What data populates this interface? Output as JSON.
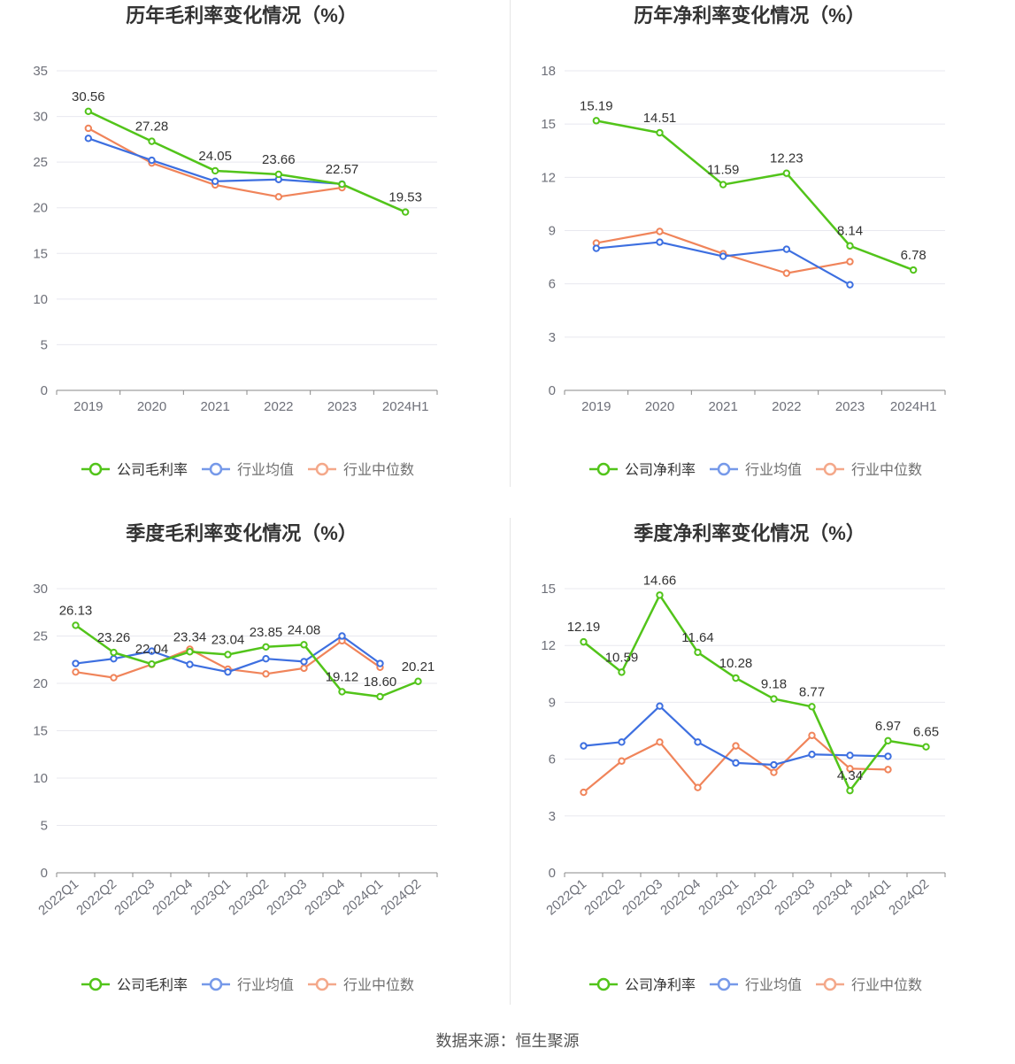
{
  "colors": {
    "company": "#52c41a",
    "avg": "#3d6fe0",
    "median": "#f0845a",
    "grid": "#e8e8ef",
    "axis": "#888888"
  },
  "legend": {
    "avg": "行业均值",
    "median": "行业中位数"
  },
  "source": "数据来源：恒生聚源",
  "chart_data": [
    {
      "type": "line",
      "title": "历年毛利率变化情况（%）",
      "company_label": "公司毛利率",
      "categories": [
        "2019",
        "2020",
        "2021",
        "2022",
        "2023",
        "2024H1"
      ],
      "ylim": [
        0,
        35
      ],
      "yticks": [
        0,
        5,
        10,
        15,
        20,
        25,
        30,
        35
      ],
      "rotate_x": false,
      "series": [
        {
          "key": "company",
          "values": [
            30.56,
            27.28,
            24.05,
            23.66,
            22.57,
            19.53
          ],
          "labels": [
            "30.56",
            "27.28",
            "24.05",
            "23.66",
            "22.57",
            "19.53"
          ]
        },
        {
          "key": "avg",
          "values": [
            27.6,
            25.2,
            22.9,
            23.1,
            22.6,
            null
          ]
        },
        {
          "key": "median",
          "values": [
            28.7,
            24.9,
            22.5,
            21.2,
            22.2,
            null
          ]
        }
      ]
    },
    {
      "type": "line",
      "title": "历年净利率变化情况（%）",
      "company_label": "公司净利率",
      "categories": [
        "2019",
        "2020",
        "2021",
        "2022",
        "2023",
        "2024H1"
      ],
      "ylim": [
        0,
        18
      ],
      "yticks": [
        0,
        3,
        6,
        9,
        12,
        15,
        18
      ],
      "rotate_x": false,
      "series": [
        {
          "key": "company",
          "values": [
            15.19,
            14.51,
            11.59,
            12.23,
            8.14,
            6.78
          ],
          "labels": [
            "15.19",
            "14.51",
            "11.59",
            "12.23",
            "8.14",
            "6.78"
          ]
        },
        {
          "key": "avg",
          "values": [
            8.0,
            8.35,
            7.55,
            7.95,
            5.95,
            null
          ]
        },
        {
          "key": "median",
          "values": [
            8.3,
            8.95,
            7.7,
            6.6,
            7.25,
            null
          ]
        }
      ]
    },
    {
      "type": "line",
      "title": "季度毛利率变化情况（%）",
      "company_label": "公司毛利率",
      "categories": [
        "2022Q1",
        "2022Q2",
        "2022Q3",
        "2022Q4",
        "2023Q1",
        "2023Q2",
        "2023Q3",
        "2023Q4",
        "2024Q1",
        "2024Q2"
      ],
      "ylim": [
        0,
        30
      ],
      "yticks": [
        0,
        5,
        10,
        15,
        20,
        25,
        30
      ],
      "rotate_x": true,
      "series": [
        {
          "key": "company",
          "values": [
            26.13,
            23.26,
            22.04,
            23.34,
            23.04,
            23.85,
            24.08,
            19.12,
            18.6,
            20.21
          ],
          "labels": [
            "26.13",
            "23.26",
            "22.04",
            "23.34",
            "23.04",
            "23.85",
            "24.08",
            "19.12",
            "18.60",
            "20.21"
          ]
        },
        {
          "key": "avg",
          "values": [
            22.1,
            22.6,
            23.4,
            22.0,
            21.2,
            22.6,
            22.3,
            25.0,
            22.1,
            null
          ]
        },
        {
          "key": "median",
          "values": [
            21.2,
            20.6,
            22.0,
            23.6,
            21.5,
            21.0,
            21.6,
            24.5,
            21.7,
            null
          ]
        }
      ]
    },
    {
      "type": "line",
      "title": "季度净利率变化情况（%）",
      "company_label": "公司净利率",
      "categories": [
        "2022Q1",
        "2022Q2",
        "2022Q3",
        "2022Q4",
        "2023Q1",
        "2023Q2",
        "2023Q3",
        "2023Q4",
        "2024Q1",
        "2024Q2"
      ],
      "ylim": [
        0,
        15
      ],
      "yticks": [
        0,
        3,
        6,
        9,
        12,
        15
      ],
      "rotate_x": true,
      "series": [
        {
          "key": "company",
          "values": [
            12.19,
            10.59,
            14.66,
            11.64,
            10.28,
            9.18,
            8.77,
            4.34,
            6.97,
            6.65
          ],
          "labels": [
            "12.19",
            "10.59",
            "14.66",
            "11.64",
            "10.28",
            "9.18",
            "8.77",
            "4.34",
            "6.97",
            "6.65"
          ]
        },
        {
          "key": "avg",
          "values": [
            6.7,
            6.9,
            8.8,
            6.9,
            5.8,
            5.7,
            6.25,
            6.2,
            6.15,
            null
          ]
        },
        {
          "key": "median",
          "values": [
            4.25,
            5.9,
            6.9,
            4.5,
            6.7,
            5.3,
            7.25,
            5.5,
            5.45,
            null
          ]
        }
      ]
    }
  ]
}
